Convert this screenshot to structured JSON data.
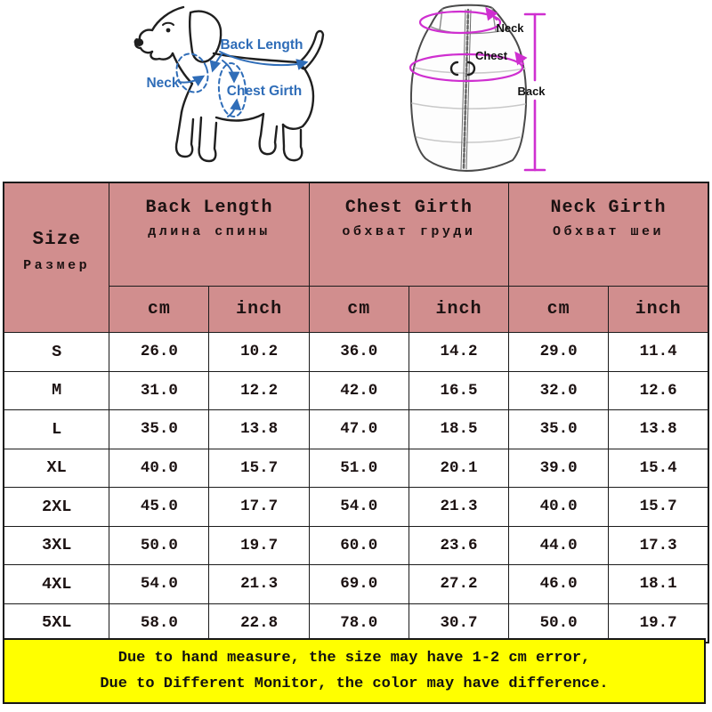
{
  "diagram": {
    "dog": {
      "back_length_label": "Back Length",
      "neck_label": "Neck",
      "chest_girth_label": "Chest Girth",
      "annotation_color": "#2f6db8"
    },
    "vest": {
      "neck_label": "Neck",
      "chest_label": "Chest",
      "back_label": "Back",
      "annotation_color": "#cf2fd0"
    }
  },
  "table": {
    "header_bg": "#d18e8e",
    "size_header": {
      "en": "Size",
      "ru": "Размер"
    },
    "groups": [
      {
        "en": "Back Length",
        "ru": "длина спины"
      },
      {
        "en": "Chest Girth",
        "ru": "обхват груди"
      },
      {
        "en": "Neck Girth",
        "ru": "Обхват шеи"
      }
    ],
    "units": {
      "cm": "cm",
      "inch": "inch"
    },
    "rows": [
      {
        "size": "S",
        "values": [
          "26.0",
          "10.2",
          "36.0",
          "14.2",
          "29.0",
          "11.4"
        ]
      },
      {
        "size": "M",
        "values": [
          "31.0",
          "12.2",
          "42.0",
          "16.5",
          "32.0",
          "12.6"
        ]
      },
      {
        "size": "L",
        "values": [
          "35.0",
          "13.8",
          "47.0",
          "18.5",
          "35.0",
          "13.8"
        ]
      },
      {
        "size": "XL",
        "values": [
          "40.0",
          "15.7",
          "51.0",
          "20.1",
          "39.0",
          "15.4"
        ]
      },
      {
        "size": "2XL",
        "values": [
          "45.0",
          "17.7",
          "54.0",
          "21.3",
          "40.0",
          "15.7"
        ]
      },
      {
        "size": "3XL",
        "values": [
          "50.0",
          "19.7",
          "60.0",
          "23.6",
          "44.0",
          "17.3"
        ]
      },
      {
        "size": "4XL",
        "values": [
          "54.0",
          "21.3",
          "69.0",
          "27.2",
          "46.0",
          "18.1"
        ]
      },
      {
        "size": "5XL",
        "values": [
          "58.0",
          "22.8",
          "78.0",
          "30.7",
          "50.0",
          "19.7"
        ]
      }
    ]
  },
  "footer": {
    "bg": "#ffff00",
    "line1": "Due to hand measure, the size may have 1-2 cm error,",
    "line2": "Due to Different Monitor, the color may have difference."
  },
  "chart_data": {
    "type": "table",
    "columns": [
      "Size",
      "Back Length cm",
      "Back Length inch",
      "Chest Girth cm",
      "Chest Girth inch",
      "Neck Girth cm",
      "Neck Girth inch"
    ],
    "rows": [
      [
        "S",
        26.0,
        10.2,
        36.0,
        14.2,
        29.0,
        11.4
      ],
      [
        "M",
        31.0,
        12.2,
        42.0,
        16.5,
        32.0,
        12.6
      ],
      [
        "L",
        35.0,
        13.8,
        47.0,
        18.5,
        35.0,
        13.8
      ],
      [
        "XL",
        40.0,
        15.7,
        51.0,
        20.1,
        39.0,
        15.4
      ],
      [
        "2XL",
        45.0,
        17.7,
        54.0,
        21.3,
        40.0,
        15.7
      ],
      [
        "3XL",
        50.0,
        19.7,
        60.0,
        23.6,
        44.0,
        17.3
      ],
      [
        "4XL",
        54.0,
        21.3,
        69.0,
        27.2,
        46.0,
        18.1
      ],
      [
        "5XL",
        58.0,
        22.8,
        78.0,
        30.7,
        50.0,
        19.7
      ]
    ]
  }
}
